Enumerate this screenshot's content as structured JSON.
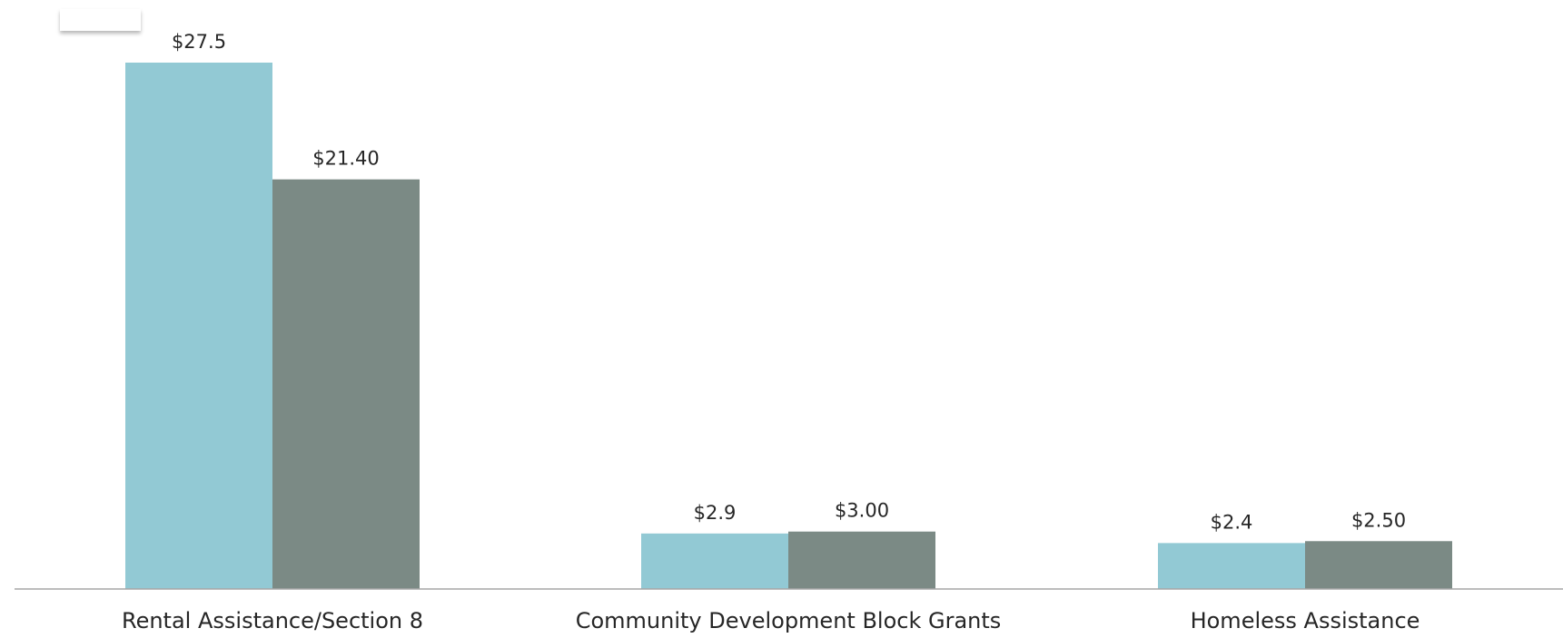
{
  "chart_data": {
    "type": "bar",
    "categories": [
      "Rental Assistance/Section 8",
      "Community Development Block Grants",
      "Homeless Assistance"
    ],
    "series": [
      {
        "values": [
          27.5,
          2.9,
          2.4
        ],
        "labels": [
          "$27.5",
          "$2.9",
          "$2.4"
        ],
        "color": "#92c9d4"
      },
      {
        "values": [
          21.4,
          3.0,
          2.5
        ],
        "labels": [
          "$21.40",
          "$3.00",
          "$2.50"
        ],
        "color": "#7b8a85"
      }
    ],
    "ylim": [
      0,
      27.5
    ],
    "grid": false,
    "legend": "top-left",
    "axis_color": "#a6a6a6"
  }
}
